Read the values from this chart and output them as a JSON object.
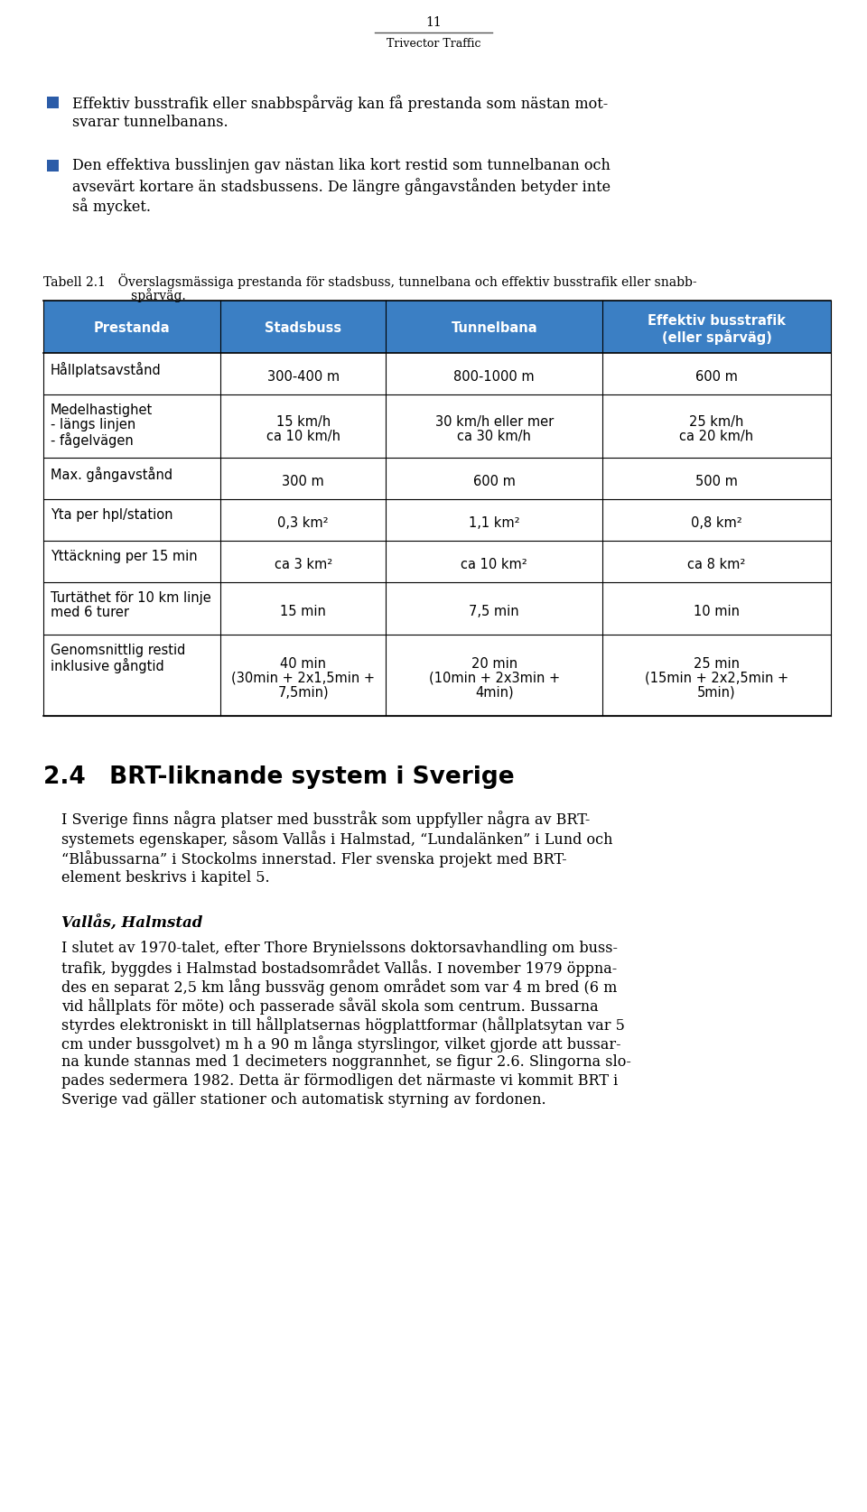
{
  "page_number": "11",
  "page_footer": "Trivector Traffic",
  "bg_color": "#ffffff",
  "bullet_color": "#2b5ca8",
  "header_bg": "#3b7fc4",
  "header_text_color": "#ffffff",
  "col_headers": [
    "Prestanda",
    "Stadsbuss",
    "Tunnelbana",
    "Effektiv busstrafik\n(eller spårväg)"
  ],
  "bullet1_line1": "Effektiv busstrafik eller snabbspårväg kan få prestanda som nästan mot-",
  "bullet1_line2": "svarar tunnelbanans.",
  "bullet2_line1": "Den effektiva busslinjen gav nästan lika kort restid som tunnelbanan och",
  "bullet2_line2": "avsevärt kortare än stadsbussens. De längre gångavstånden betyder inte",
  "bullet2_line3": "så mycket.",
  "caption_line1": "Tabell 2.1 Överslagsmässiga prestanda för stadsbuss, tunnelbana och effektiv busstrafik eller snabb-",
  "caption_line2": "       spårväg.",
  "section_heading": "2.4 BRT-liknande system i Sverige",
  "section_body_lines": [
    "I Sverige finns några platser med busstråk som uppfyller några av BRT-",
    "systemets egenskaper, såsom Vallås i Halmstad, “Lundalänken” i Lund och",
    "“Blåbussarna” i Stockolms innerstad. Fler svenska projekt med BRT-",
    "element beskrivs i kapitel 5."
  ],
  "subsection_heading": "Vallås, Halmstad",
  "subsection_body_lines": [
    "I slutet av 1970-talet, efter Thore Brynielssons doktorsavhandling om buss-",
    "trafik, byggdes i Halmstad bostadsområdet Vallås. I november 1979 öppna-",
    "des en separat 2,5 km lång bussväg genom området som var 4 m bred (6 m",
    "vid hållplats för möte) och passerade såväl skola som centrum. Bussarna",
    "styrdes elektroniskt in till hållplatsernas högplattformar (hållplatsytan var 5",
    "cm under bussgolvet) m h a 90 m långa styrslingor, vilket gjorde att bussar-",
    "na kunde stannas med 1 decimeters noggrannhet, se figur 2.6. Slingorna slo-",
    "pades sedermera 1982. Detta är förmodligen det närmaste vi kommit BRT i",
    "Sverige vad gäller stationer och automatisk styrning av fordonen."
  ]
}
